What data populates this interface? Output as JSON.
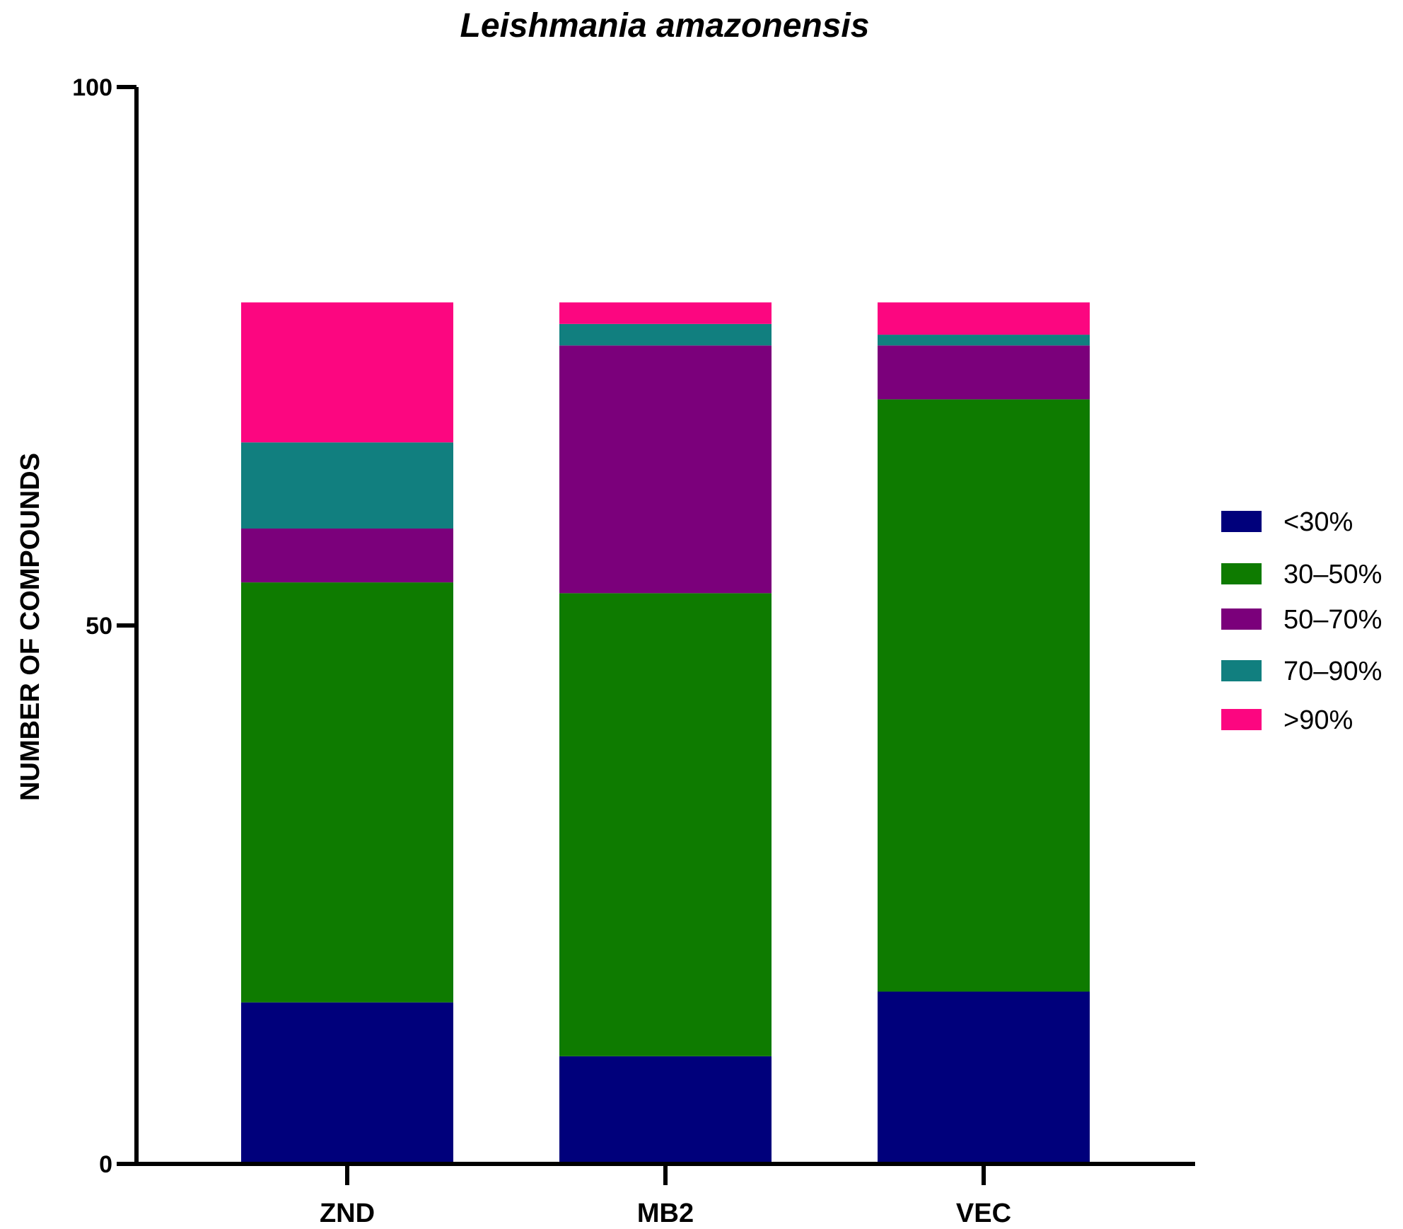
{
  "chart_data": {
    "type": "bar",
    "stacked": true,
    "title": "Leishmania amazonensis",
    "xlabel": "",
    "ylabel": "NUMBER OF COMPOUNDS",
    "ylim": [
      0,
      100
    ],
    "yticks": [
      "0",
      "50",
      "100"
    ],
    "categories": [
      "ZND",
      "MB2",
      "VEC"
    ],
    "series": [
      {
        "name": "<30%",
        "color": "#00007b",
        "values": [
          15,
          10,
          16
        ]
      },
      {
        "name": "30–50%",
        "color": "#0e7b00",
        "values": [
          39,
          43,
          55
        ]
      },
      {
        "name": "50–70%",
        "color": "#7b007b",
        "values": [
          5,
          23,
          5
        ]
      },
      {
        "name": "70–90%",
        "color": "#117f7f",
        "values": [
          8,
          2,
          1
        ]
      },
      {
        "name": ">90%",
        "color": "#fc0680",
        "values": [
          13,
          2,
          3
        ]
      }
    ],
    "grid": false,
    "legend": "right"
  }
}
